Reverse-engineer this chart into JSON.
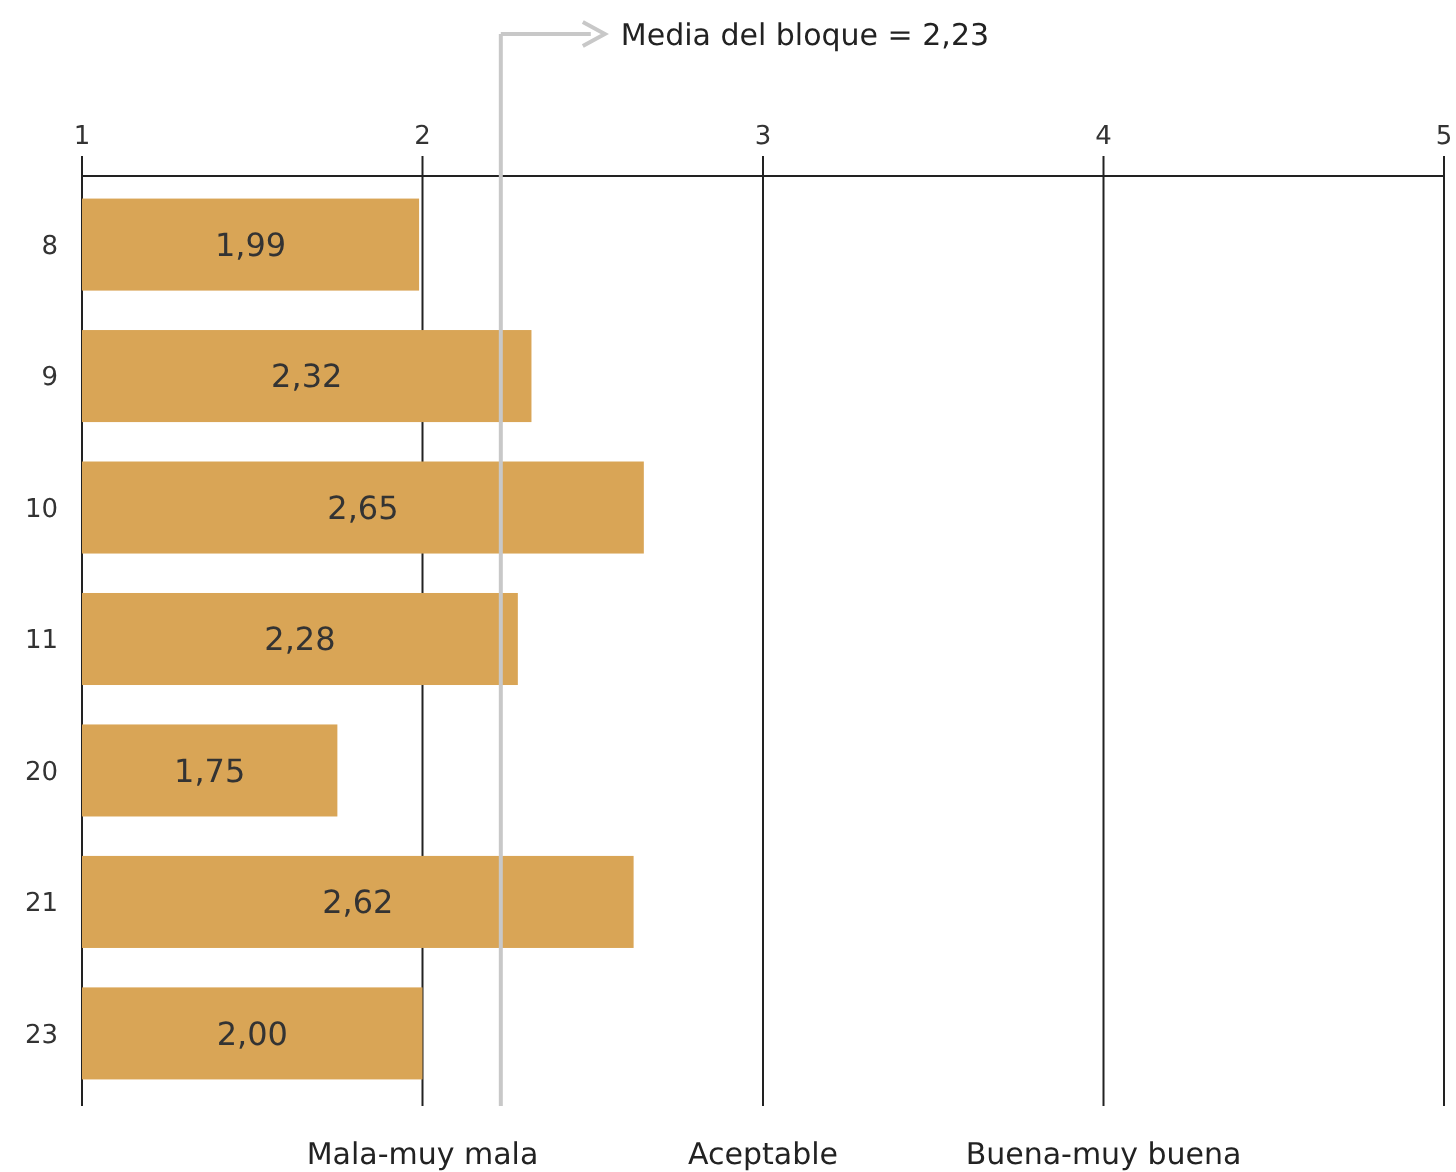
{
  "chart_data": {
    "type": "bar",
    "orientation": "horizontal",
    "categories": [
      "8",
      "9",
      "10",
      "11",
      "20",
      "21",
      "23"
    ],
    "values": [
      1.99,
      2.32,
      2.65,
      2.28,
      1.75,
      2.62,
      2.0
    ],
    "value_labels": [
      "1,99",
      "2,32",
      "2,65",
      "2,28",
      "1,75",
      "2,62",
      "2,00"
    ],
    "color": "#d9a556",
    "xlim": [
      1,
      5
    ],
    "xticks": [
      1,
      2,
      3,
      4,
      5
    ],
    "grid": "x",
    "ref_lines": [
      {
        "axis": "x",
        "value": 2.23,
        "label": "Media del bloque = 2,23",
        "color": "#c8c8c8"
      }
    ],
    "annotations": [
      "Mala-muy mala",
      "Aceptable",
      "Buena-muy buena"
    ]
  }
}
